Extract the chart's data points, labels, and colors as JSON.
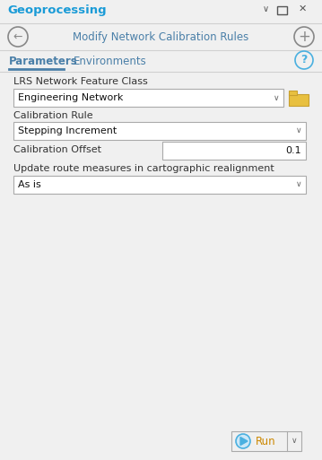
{
  "bg_color": "#f0f0f0",
  "title_bar_text": "Geoprocessing",
  "title_bar_color": "#1a9bd7",
  "title_text": "Modify Network Calibration Rules",
  "title_color": "#4a7fa8",
  "tab1": "Parameters",
  "tab2": "Environments",
  "tab_color": "#4a7fa8",
  "tab_underline_color": "#4a7fa8",
  "label1": "LRS Network Feature Class",
  "dropdown1_text": "Engineering Network",
  "label2": "Calibration Rule",
  "dropdown2_text": "Stepping Increment",
  "label3": "Calibration Offset",
  "offset_value": "0.1",
  "label4": "Update route measures in cartographic realignment",
  "dropdown3_text": "As is",
  "run_button_text": "Run",
  "dropdown_border": "#aaaaaa",
  "dropdown_bg": "#ffffff",
  "label_color": "#333333",
  "run_bg": "#f0f0f0",
  "run_border": "#aaaaaa",
  "run_text_color": "#cc8800",
  "accent_color": "#4ab0e0",
  "back_arrow_color": "#888888",
  "plus_color": "#888888",
  "window_controls_color": "#555555",
  "folder_color": "#e8c040",
  "folder_border": "#c8a030",
  "sep_color": "#d0d0d0",
  "chevron_color": "#666666"
}
